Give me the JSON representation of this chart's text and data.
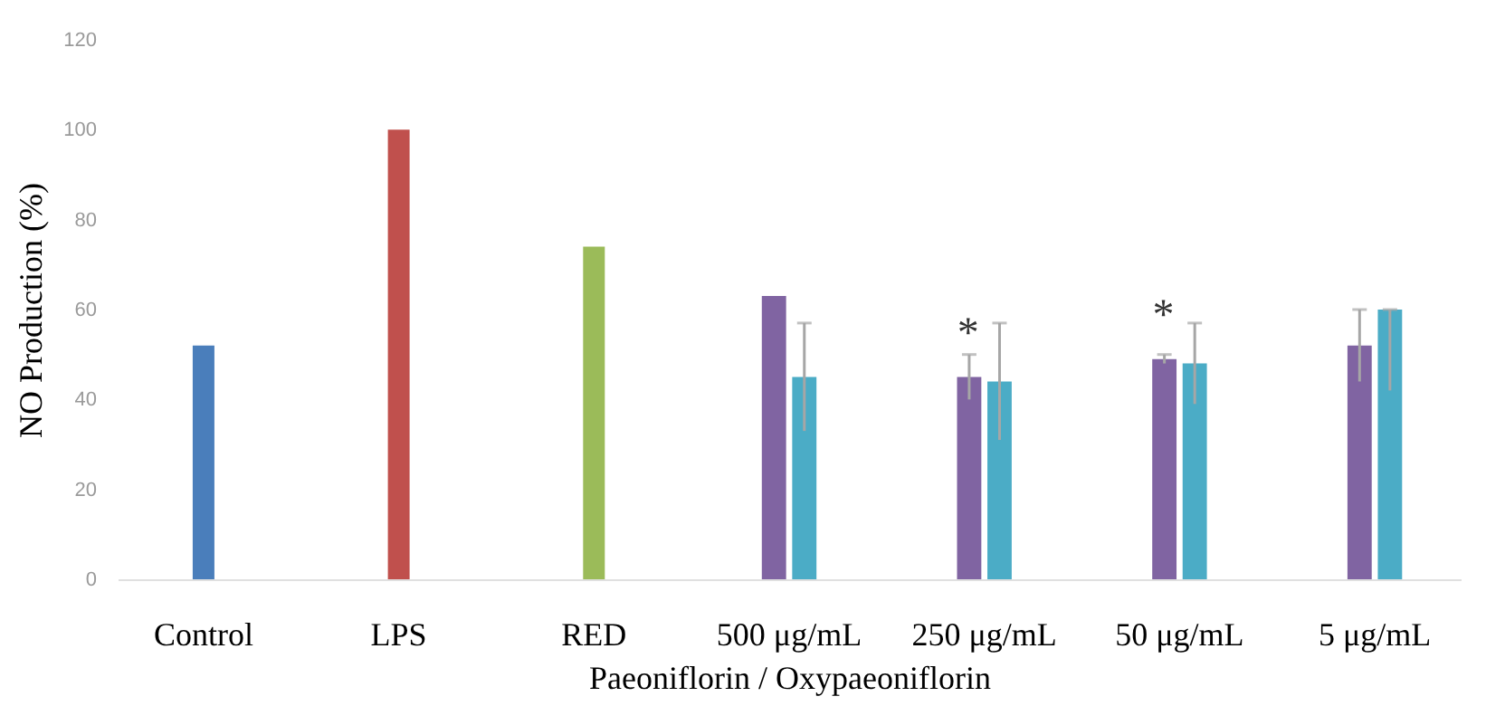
{
  "chart_data": {
    "type": "bar",
    "xlabel": "Paeoniflorin / Oxypaeoniflorin",
    "ylabel": "NO Production (%)",
    "categories": [
      "Control",
      "LPS",
      "RED",
      "500 μg/mL",
      "250 μg/mL",
      "50 μg/mL",
      "5 μg/mL"
    ],
    "series": [
      {
        "colors": [
          "#4a7ebb",
          "#c0504d",
          "#9bbb59",
          "#8064a2",
          "#8064a2",
          "#8064a2",
          "#8064a2"
        ],
        "values": [
          52,
          100,
          74,
          63,
          45,
          49,
          52
        ],
        "errors": [
          null,
          null,
          null,
          null,
          5,
          1,
          8
        ]
      },
      {
        "color": "#4bacc6",
        "values": [
          null,
          null,
          null,
          45,
          44,
          48,
          60
        ],
        "errors": [
          null,
          null,
          null,
          12,
          13,
          9,
          [
            42,
            60
          ]
        ]
      }
    ],
    "ylim": [
      0,
      120
    ],
    "yticks": [
      0,
      20,
      40,
      60,
      80,
      100,
      120
    ],
    "grid": false,
    "annotations": [
      {
        "text": "*",
        "x": "250 μg/mL",
        "y": 45
      },
      {
        "text": "*",
        "x": "50 μg/mL",
        "y": 49
      }
    ]
  }
}
